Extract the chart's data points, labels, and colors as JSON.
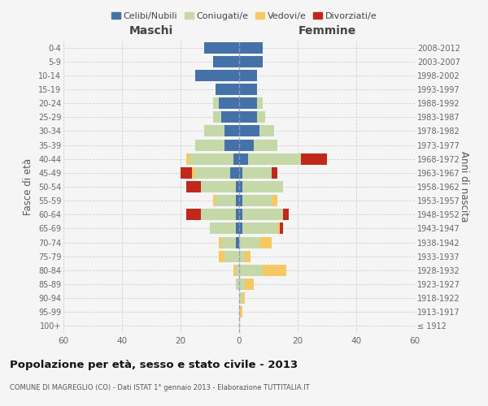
{
  "age_groups": [
    "100+",
    "95-99",
    "90-94",
    "85-89",
    "80-84",
    "75-79",
    "70-74",
    "65-69",
    "60-64",
    "55-59",
    "50-54",
    "45-49",
    "40-44",
    "35-39",
    "30-34",
    "25-29",
    "20-24",
    "15-19",
    "10-14",
    "5-9",
    "0-4"
  ],
  "birth_years": [
    "≤ 1912",
    "1913-1917",
    "1918-1922",
    "1923-1927",
    "1928-1932",
    "1933-1937",
    "1938-1942",
    "1943-1947",
    "1948-1952",
    "1953-1957",
    "1958-1962",
    "1963-1967",
    "1968-1972",
    "1973-1977",
    "1978-1982",
    "1983-1987",
    "1988-1992",
    "1993-1997",
    "1998-2002",
    "2003-2007",
    "2008-2012"
  ],
  "males": {
    "celibi": [
      0,
      0,
      0,
      0,
      0,
      0,
      1,
      1,
      1,
      1,
      1,
      3,
      2,
      5,
      5,
      6,
      7,
      8,
      15,
      9,
      12
    ],
    "coniugati": [
      0,
      0,
      0,
      1,
      1,
      5,
      5,
      9,
      12,
      7,
      12,
      12,
      15,
      10,
      7,
      3,
      2,
      0,
      0,
      0,
      0
    ],
    "vedovi": [
      0,
      0,
      0,
      0,
      1,
      2,
      1,
      0,
      0,
      1,
      0,
      1,
      1,
      0,
      0,
      0,
      0,
      0,
      0,
      0,
      0
    ],
    "divorziati": [
      0,
      0,
      0,
      0,
      0,
      0,
      0,
      0,
      5,
      0,
      5,
      4,
      0,
      0,
      0,
      0,
      0,
      0,
      0,
      0,
      0
    ]
  },
  "females": {
    "nubili": [
      0,
      0,
      0,
      0,
      0,
      0,
      0,
      1,
      1,
      1,
      1,
      1,
      3,
      5,
      7,
      6,
      6,
      6,
      6,
      8,
      8
    ],
    "coniugate": [
      0,
      0,
      1,
      2,
      8,
      2,
      7,
      12,
      14,
      10,
      14,
      10,
      18,
      8,
      5,
      3,
      2,
      0,
      0,
      0,
      0
    ],
    "vedove": [
      0,
      1,
      1,
      3,
      8,
      2,
      4,
      1,
      0,
      2,
      0,
      0,
      0,
      0,
      0,
      0,
      0,
      0,
      0,
      0,
      0
    ],
    "divorziate": [
      0,
      0,
      0,
      0,
      0,
      0,
      0,
      1,
      2,
      0,
      0,
      2,
      9,
      0,
      0,
      0,
      0,
      0,
      0,
      0,
      0
    ]
  },
  "colors": {
    "celibi": "#4472a8",
    "coniugati": "#c5d9a8",
    "vedovi": "#f5c864",
    "divorziati": "#c0281b"
  },
  "xlim": 60,
  "title": "Popolazione per età, sesso e stato civile - 2013",
  "subtitle": "COMUNE DI MAGREGLIO (CO) - Dati ISTAT 1° gennaio 2013 - Elaborazione TUTTITALIA.IT",
  "xlabel_left": "Maschi",
  "xlabel_right": "Femmine",
  "ylabel_left": "Fasce di età",
  "ylabel_right": "Anni di nascita",
  "legend_labels": [
    "Celibi/Nubili",
    "Coniugati/e",
    "Vedovi/e",
    "Divorziati/e"
  ],
  "bg_color": "#f5f5f5",
  "grid_color": "#cccccc"
}
